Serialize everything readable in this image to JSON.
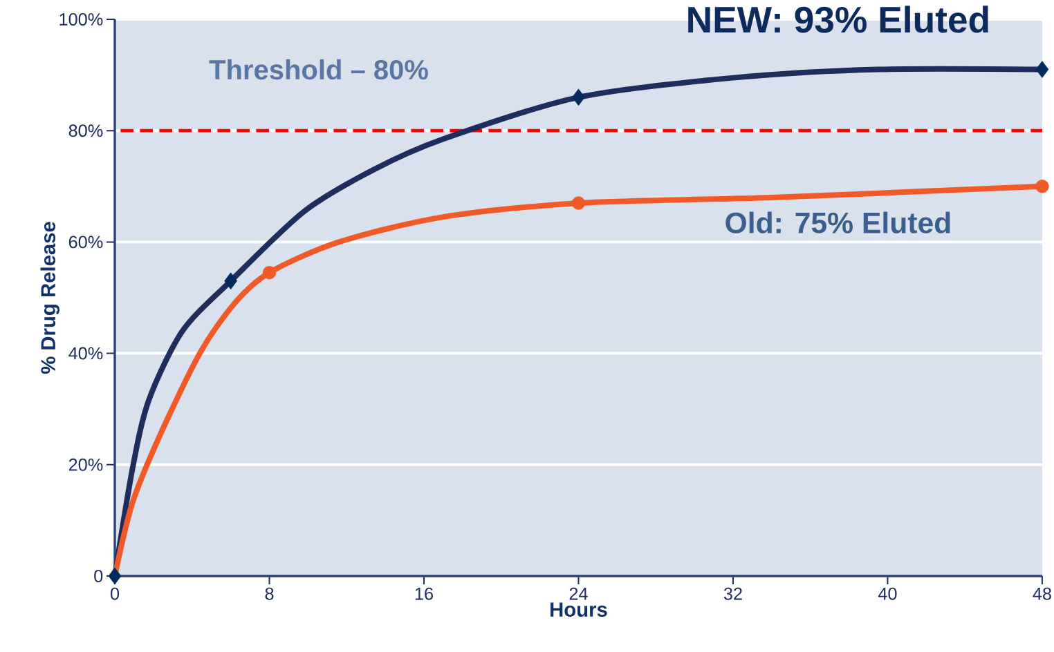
{
  "chart_data": {
    "type": "line",
    "xlabel": "Hours",
    "ylabel": "% Drug Release",
    "xlim": [
      0,
      48
    ],
    "ylim": [
      0,
      100
    ],
    "xticks": [
      0,
      8,
      16,
      24,
      32,
      40,
      48
    ],
    "yticks": [
      {
        "value": 0,
        "label": "0"
      },
      {
        "value": 20,
        "label": "20%"
      },
      {
        "value": 40,
        "label": "40%"
      },
      {
        "value": 60,
        "label": "60%"
      },
      {
        "value": 80,
        "label": "80%"
      },
      {
        "value": 100,
        "label": "100%"
      }
    ],
    "grid": "y",
    "line_style": "solid",
    "series": [
      {
        "color": "#1f2d5c",
        "marker": "none",
        "x": [
          0,
          0.9,
          1.75,
          3.5,
          6,
          9.8,
          13.4,
          17,
          24,
          32,
          39.5,
          48
        ],
        "values": [
          0,
          19,
          31.5,
          44,
          53,
          65.5,
          73,
          78.5,
          86,
          89.5,
          91,
          91
        ]
      },
      {
        "color": "#f05a28",
        "marker": "none",
        "x": [
          0,
          0.9,
          2.3,
          4.4,
          6.2,
          8,
          11.6,
          17,
          24,
          34,
          48
        ],
        "values": [
          0,
          13,
          25,
          40,
          49,
          54.5,
          60,
          64.5,
          67,
          68,
          70
        ]
      },
      {
        "type": "scatter",
        "color": "#002b5c",
        "marker": "diamond",
        "x": [
          0,
          6,
          24,
          48
        ],
        "values": [
          0,
          53,
          86,
          91
        ]
      },
      {
        "type": "scatter",
        "color": "#f05a28",
        "marker": "circle",
        "x": [
          8,
          24,
          48
        ],
        "values": [
          54.5,
          67,
          70
        ]
      }
    ],
    "ref_lines": [
      {
        "axis": "y",
        "value": 80,
        "label": "Threshold – 80%",
        "color": "#ff0000",
        "line_style": "dashed"
      }
    ],
    "annotations": [
      "NEW: 93% Eluted",
      "Old: 75% Eluted"
    ]
  }
}
